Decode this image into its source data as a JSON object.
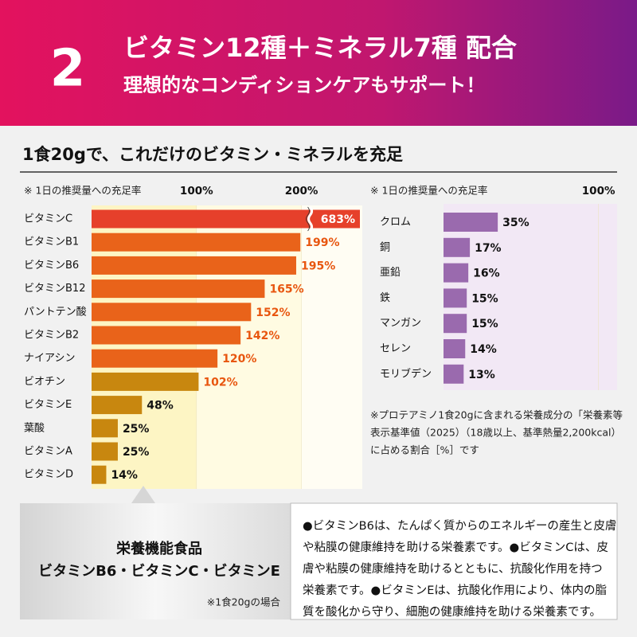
{
  "header": {
    "number": "2",
    "title": "ビタミン12種＋ミネラル7種 配合",
    "subtitle": "理想的なコンディションケアもサポート！"
  },
  "section_title": "1食20gで、これだけのビタミン・ミネラルを充足",
  "chart_data": [
    {
      "type": "hbar",
      "subtitle": "※ 1日の推奨量への充足率",
      "categories": [
        "ビタミンC",
        "ビタミンB1",
        "ビタミンB6",
        "ビタミンB12",
        "パントテン酸",
        "ビタミンB2",
        "ナイアシン",
        "ビオチン",
        "ビタミンE",
        "葉酸",
        "ビタミンA",
        "ビタミンD"
      ],
      "values": [
        683,
        199,
        195,
        165,
        152,
        142,
        120,
        102,
        48,
        25,
        25,
        14
      ],
      "value_labels": [
        "683%",
        "199%",
        "195%",
        "165%",
        "152%",
        "142%",
        "120%",
        "102%",
        "48%",
        "25%",
        "25%",
        "14%"
      ],
      "colors": [
        "#e6402b",
        "#e9631a",
        "#e9631a",
        "#e9631a",
        "#e9631a",
        "#e9631a",
        "#e9631a",
        "#c8870f",
        "#c8870f",
        "#c8870f",
        "#c8870f",
        "#c8870f"
      ],
      "xlim": [
        0,
        258
      ],
      "xticks": [
        {
          "value": 100,
          "label": "100%"
        },
        {
          "value": 200,
          "label": "200%"
        }
      ],
      "axis_break": true
    },
    {
      "type": "hbar",
      "subtitle": "※ 1日の推奨量への充足率",
      "categories": [
        "クロム",
        "銅",
        "亜鉛",
        "鉄",
        "マンガン",
        "セレン",
        "モリブデン"
      ],
      "values": [
        35,
        17,
        16,
        15,
        15,
        14,
        13
      ],
      "value_labels": [
        "35%",
        "17%",
        "16%",
        "15%",
        "15%",
        "14%",
        "13%"
      ],
      "color": "#9a6aae",
      "xlim": [
        0,
        112
      ],
      "xticks": [
        {
          "value": 100,
          "label": "100%"
        }
      ]
    }
  ],
  "footnote": [
    "※プロテアミノ1食20gに含まれる栄養成分の「栄養素等",
    "表示基準値（2025）（18歳以上、基準熱量2,200kcal）",
    "に占める割合［%］です"
  ],
  "label_box": {
    "title": "栄養機能食品",
    "subtitle": "ビタミンB6・ビタミンC・ビタミンE",
    "note": "※1食20gの場合"
  },
  "description": [
    "●ビタミンB6は、たんぱく質からのエネルギーの産生と皮膚",
    "や粘膜の健康維持を助ける栄養素です。●ビタミンCは、皮",
    "膚や粘膜の健康維持を助けるとともに、抗酸化作用を持つ",
    "栄養素です。●ビタミンEは、抗酸化作用により、体内の脂",
    "質を酸化から守り、細胞の健康維持を助ける栄養素です。"
  ]
}
